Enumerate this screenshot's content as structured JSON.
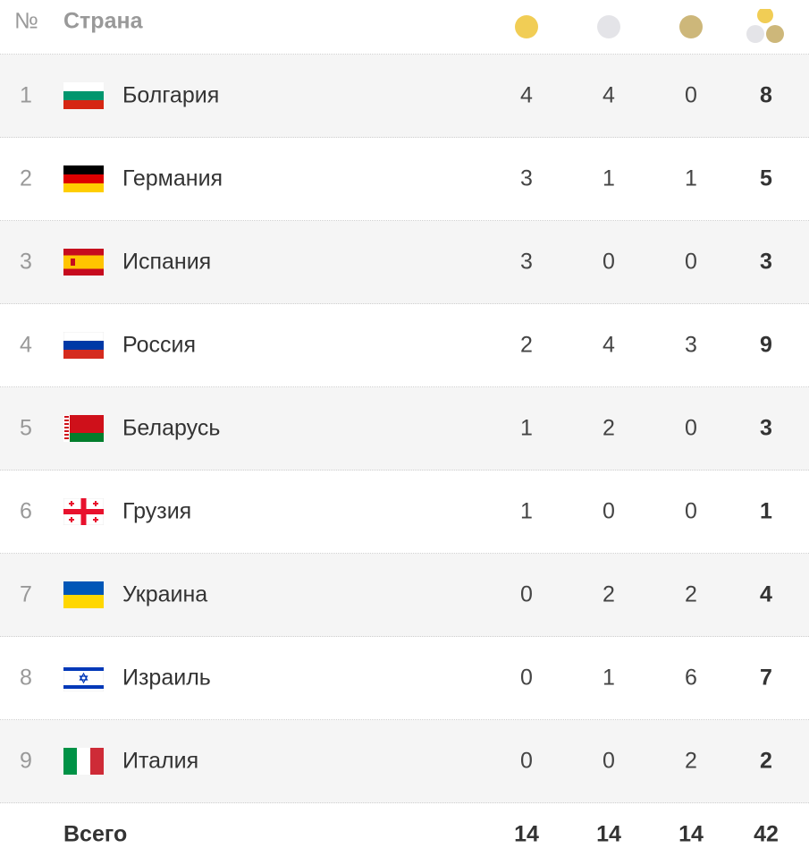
{
  "header": {
    "rank": "№",
    "country": "Страна"
  },
  "table": {
    "rows": [
      [
        1,
        "Болгария",
        4,
        4,
        0,
        8
      ],
      [
        2,
        "Германия",
        3,
        1,
        1,
        5
      ],
      [
        3,
        "Испания",
        3,
        0,
        0,
        3
      ],
      [
        4,
        "Россия",
        2,
        4,
        3,
        9
      ],
      [
        5,
        "Беларусь",
        1,
        2,
        0,
        3
      ],
      [
        6,
        "Грузия",
        1,
        0,
        0,
        1
      ],
      [
        7,
        "Украина",
        0,
        2,
        2,
        4
      ],
      [
        8,
        "Израиль",
        0,
        1,
        6,
        7
      ],
      [
        9,
        "Италия",
        0,
        0,
        2,
        2
      ]
    ]
  },
  "total": {
    "label": "Всего",
    "gold": 14,
    "silver": 14,
    "bronze": 14,
    "total": 42
  }
}
